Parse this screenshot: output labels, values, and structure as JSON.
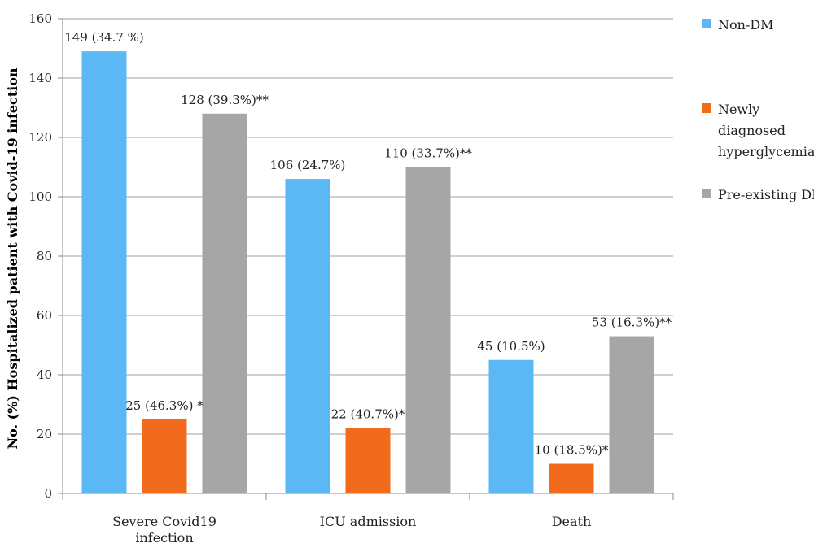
{
  "chart_data": {
    "type": "bar",
    "ylabel": "No. (%) Hospitalized patient with Covid-19 infection",
    "ylim": [
      0,
      160
    ],
    "yticks": [
      "0",
      "20",
      "40",
      "60",
      "80",
      "100",
      "120",
      "140",
      "160"
    ],
    "grid": true,
    "legend_position": "right",
    "categories": [
      [
        "Severe Covid19",
        "infection"
      ],
      [
        "ICU admission"
      ],
      [
        "Death"
      ]
    ],
    "series": [
      {
        "name": "Non-DM",
        "legend_lines": [
          "Non-DM"
        ],
        "color": "#5bb8f5",
        "values": [
          149,
          106,
          45
        ],
        "labels": [
          "149 (34.7 %)",
          "106 (24.7%)",
          "45 (10.5%)"
        ]
      },
      {
        "name": "Newly diagnosed hyperglycemia",
        "legend_lines": [
          "Newly",
          "diagnosed",
          "hyperglycemia"
        ],
        "color": "#f26a1b",
        "values": [
          25,
          22,
          10
        ],
        "labels": [
          "25 (46.3%) *",
          "22 (40.7%)*",
          "10 (18.5%)*"
        ]
      },
      {
        "name": "Pre-existing DM",
        "legend_lines": [
          "Pre-existing DM"
        ],
        "color": "#a6a6a6",
        "values": [
          128,
          110,
          53
        ],
        "labels": [
          "128 (39.3%)**",
          "110 (33.7%)**",
          "53 (16.3%)**"
        ]
      }
    ]
  }
}
